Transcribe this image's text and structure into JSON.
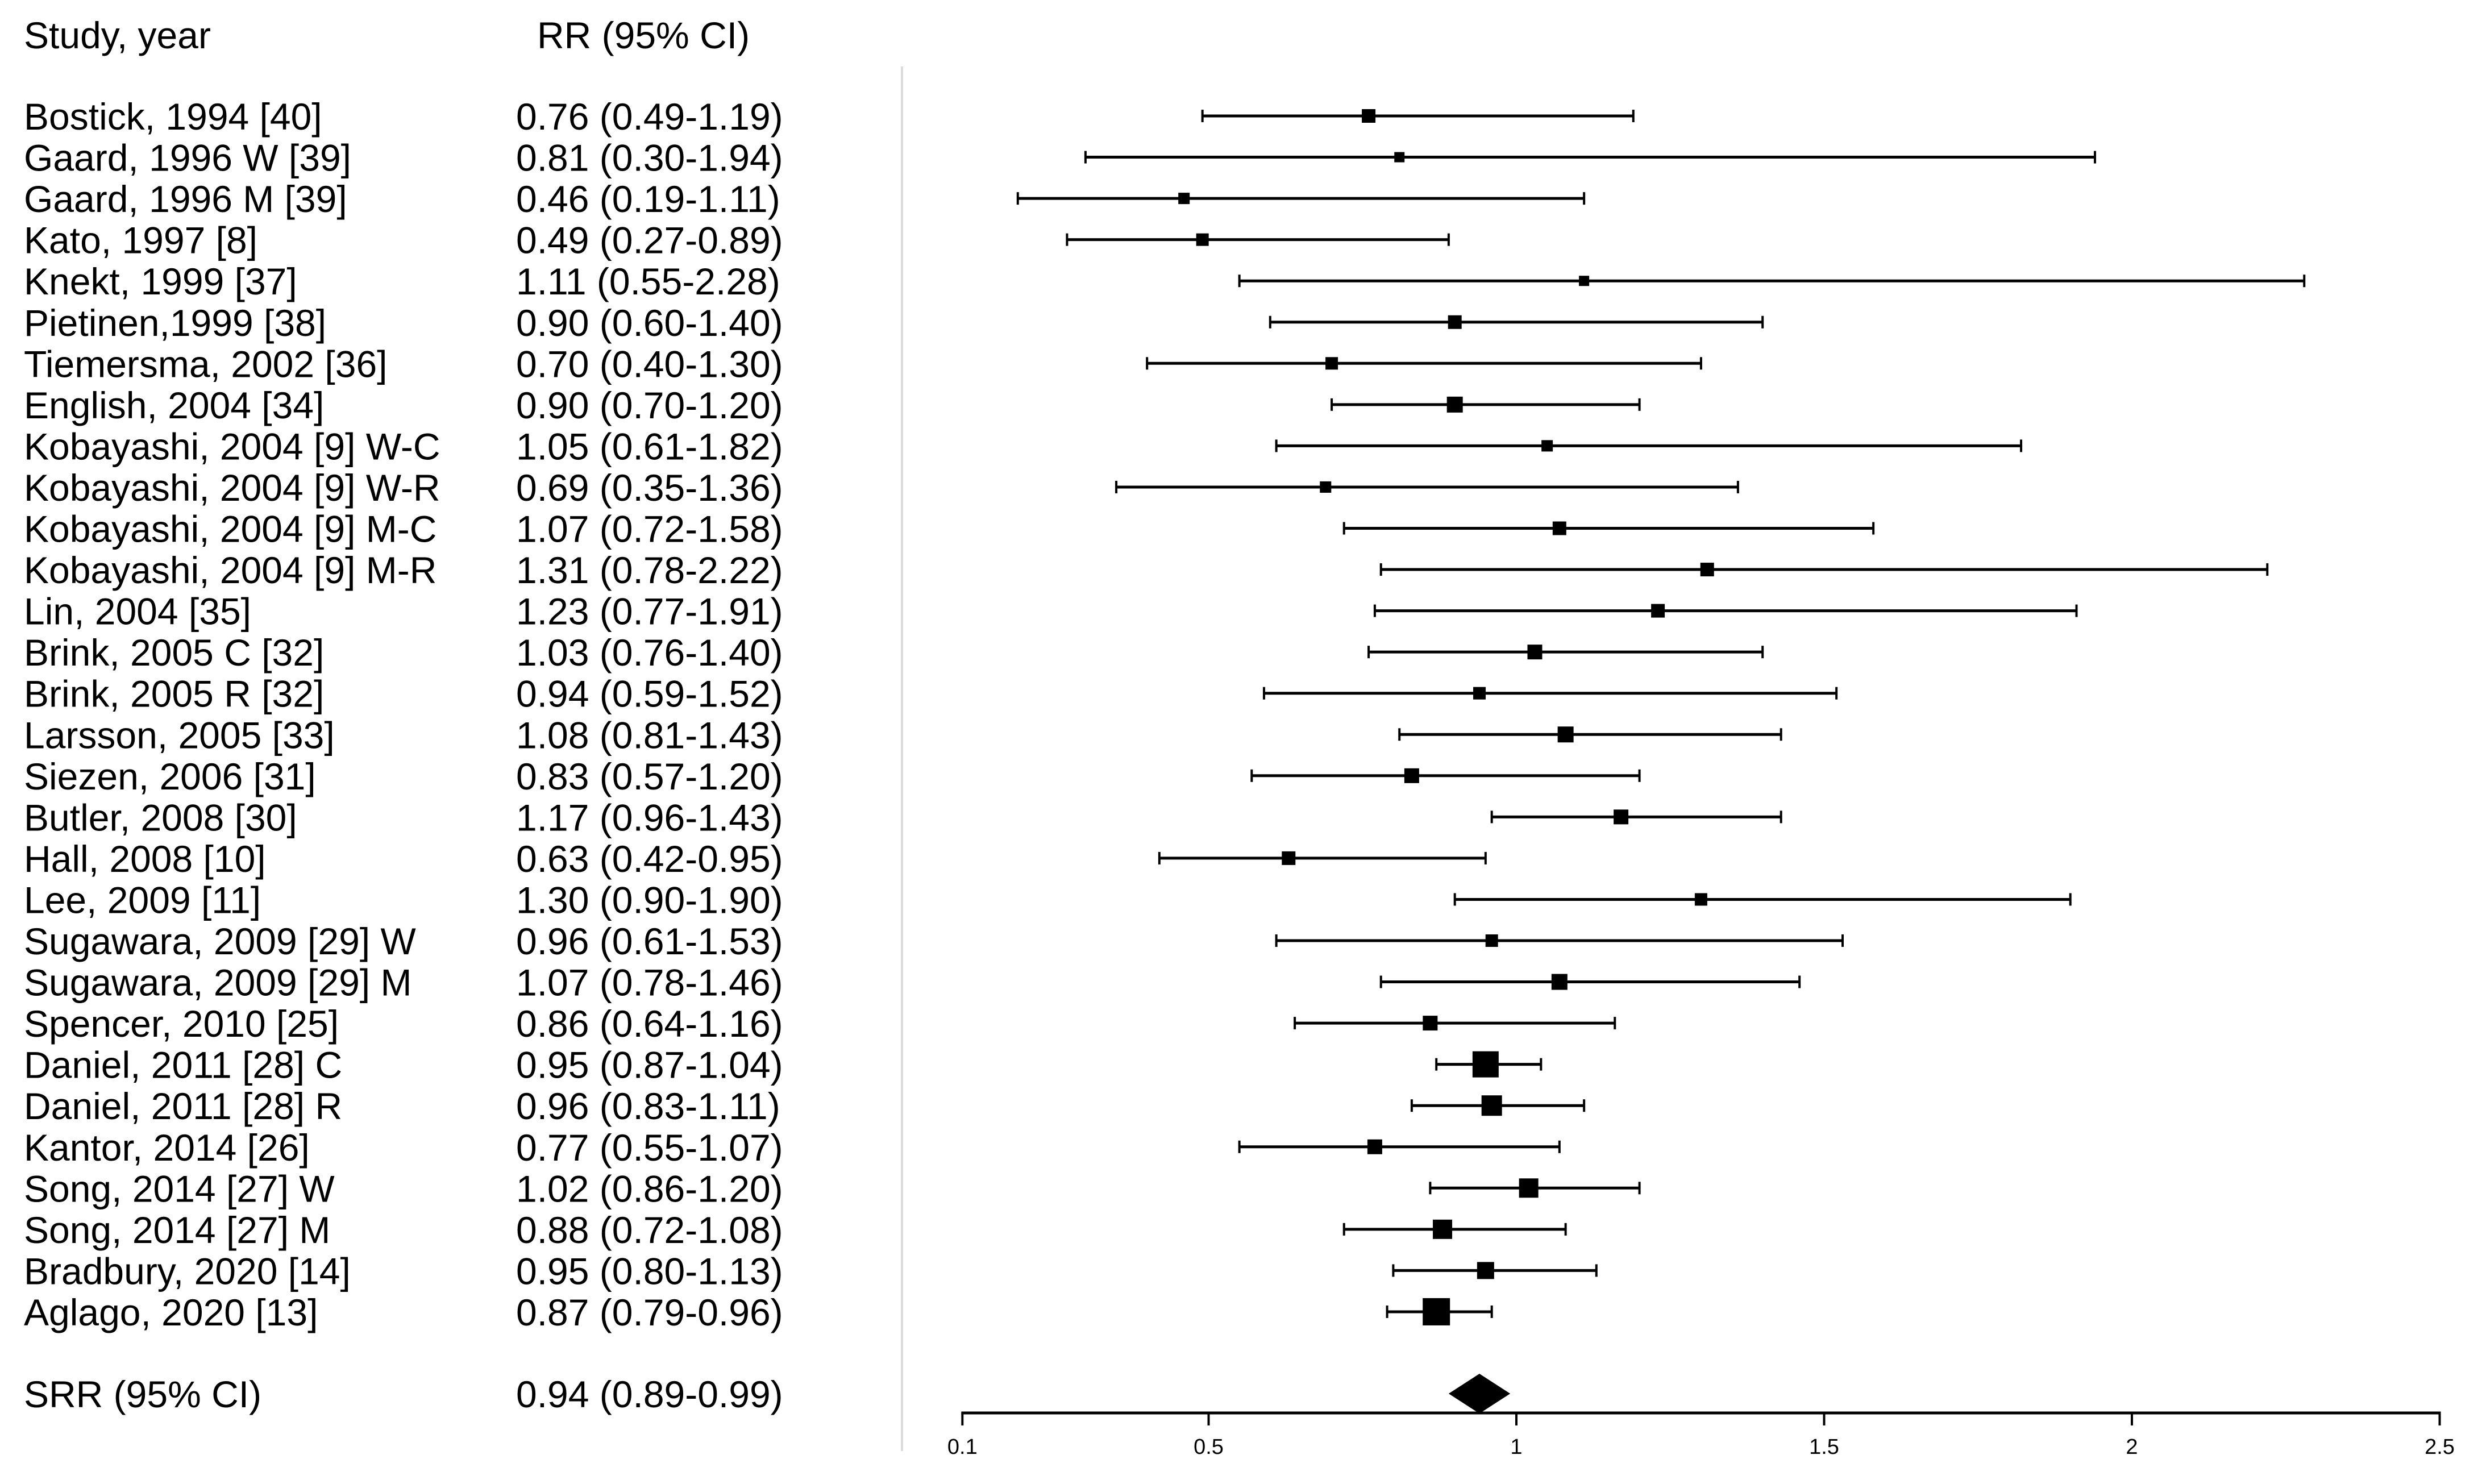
{
  "chart_data": {
    "type": "forest",
    "col_headers": {
      "study": "Study, year",
      "rr": "RR (95% CI)"
    },
    "studies": [
      {
        "label": "Bostick, 1994 [40]",
        "rr_text": "0.76 (0.49-1.19)",
        "rr": 0.76,
        "lo": 0.49,
        "hi": 1.19,
        "marker_size": 24
      },
      {
        "label": "Gaard, 1996 W [39]",
        "rr_text": "0.81 (0.30-1.94)",
        "rr": 0.81,
        "lo": 0.3,
        "hi": 1.94,
        "marker_size": 18
      },
      {
        "label": "Gaard, 1996 M [39]",
        "rr_text": "0.46 (0.19-1.11)",
        "rr": 0.46,
        "lo": 0.19,
        "hi": 1.11,
        "marker_size": 20
      },
      {
        "label": "Kato, 1997 [8]",
        "rr_text": "0.49 (0.27-0.89)",
        "rr": 0.49,
        "lo": 0.27,
        "hi": 0.89,
        "marker_size": 22
      },
      {
        "label": "Knekt, 1999 [37]",
        "rr_text": "1.11 (0.55-2.28)",
        "rr": 1.11,
        "lo": 0.55,
        "hi": 2.28,
        "marker_size": 18
      },
      {
        "label": "Pietinen,1999 [38]",
        "rr_text": "0.90 (0.60-1.40)",
        "rr": 0.9,
        "lo": 0.6,
        "hi": 1.4,
        "marker_size": 24
      },
      {
        "label": "Tiemersma, 2002 [36]",
        "rr_text": "0.70 (0.40-1.30)",
        "rr": 0.7,
        "lo": 0.4,
        "hi": 1.3,
        "marker_size": 22
      },
      {
        "label": "English, 2004 [34]",
        "rr_text": "0.90 (0.70-1.20)",
        "rr": 0.9,
        "lo": 0.7,
        "hi": 1.2,
        "marker_size": 28
      },
      {
        "label": "Kobayashi, 2004 [9] W-C",
        "rr_text": "1.05 (0.61-1.82)",
        "rr": 1.05,
        "lo": 0.61,
        "hi": 1.82,
        "marker_size": 20
      },
      {
        "label": "Kobayashi, 2004 [9] W-R",
        "rr_text": "0.69 (0.35-1.36)",
        "rr": 0.69,
        "lo": 0.35,
        "hi": 1.36,
        "marker_size": 20
      },
      {
        "label": "Kobayashi, 2004 [9] M-C",
        "rr_text": "1.07 (0.72-1.58)",
        "rr": 1.07,
        "lo": 0.72,
        "hi": 1.58,
        "marker_size": 24
      },
      {
        "label": "Kobayashi, 2004 [9] M-R",
        "rr_text": "1.31 (0.78-2.22)",
        "rr": 1.31,
        "lo": 0.78,
        "hi": 2.22,
        "marker_size": 24
      },
      {
        "label": "Lin, 2004 [35]",
        "rr_text": "1.23 (0.77-1.91)",
        "rr": 1.23,
        "lo": 0.77,
        "hi": 1.91,
        "marker_size": 24
      },
      {
        "label": "Brink, 2005 C [32]",
        "rr_text": "1.03 (0.76-1.40)",
        "rr": 1.03,
        "lo": 0.76,
        "hi": 1.4,
        "marker_size": 26
      },
      {
        "label": "Brink, 2005 R [32]",
        "rr_text": "0.94 (0.59-1.52)",
        "rr": 0.94,
        "lo": 0.59,
        "hi": 1.52,
        "marker_size": 22
      },
      {
        "label": "Larsson, 2005 [33]",
        "rr_text": "1.08 (0.81-1.43)",
        "rr": 1.08,
        "lo": 0.81,
        "hi": 1.43,
        "marker_size": 28
      },
      {
        "label": "Siezen, 2006 [31]",
        "rr_text": "0.83 (0.57-1.20)",
        "rr": 0.83,
        "lo": 0.57,
        "hi": 1.2,
        "marker_size": 26
      },
      {
        "label": "Butler, 2008 [30]",
        "rr_text": "1.17 (0.96-1.43)",
        "rr": 1.17,
        "lo": 0.96,
        "hi": 1.43,
        "marker_size": 26
      },
      {
        "label": "Hall, 2008 [10]",
        "rr_text": "0.63 (0.42-0.95)",
        "rr": 0.63,
        "lo": 0.42,
        "hi": 0.95,
        "marker_size": 24
      },
      {
        "label": "Lee, 2009 [11]",
        "rr_text": "1.30 (0.90-1.90)",
        "rr": 1.3,
        "lo": 0.9,
        "hi": 1.9,
        "marker_size": 22
      },
      {
        "label": "Sugawara, 2009 [29] W",
        "rr_text": "0.96 (0.61-1.53)",
        "rr": 0.96,
        "lo": 0.61,
        "hi": 1.53,
        "marker_size": 22
      },
      {
        "label": "Sugawara, 2009 [29] M",
        "rr_text": "1.07 (0.78-1.46)",
        "rr": 1.07,
        "lo": 0.78,
        "hi": 1.46,
        "marker_size": 28
      },
      {
        "label": "Spencer, 2010 [25]",
        "rr_text": "0.86 (0.64-1.16)",
        "rr": 0.86,
        "lo": 0.64,
        "hi": 1.16,
        "marker_size": 26
      },
      {
        "label": "Daniel, 2011 [28] C",
        "rr_text": "0.95 (0.87-1.04)",
        "rr": 0.95,
        "lo": 0.87,
        "hi": 1.04,
        "marker_size": 46
      },
      {
        "label": "Daniel, 2011 [28] R",
        "rr_text": "0.96 (0.83-1.11)",
        "rr": 0.96,
        "lo": 0.83,
        "hi": 1.11,
        "marker_size": 36
      },
      {
        "label": "Kantor, 2014 [26]",
        "rr_text": "0.77 (0.55-1.07)",
        "rr": 0.77,
        "lo": 0.55,
        "hi": 1.07,
        "marker_size": 26
      },
      {
        "label": "Song, 2014 [27] W",
        "rr_text": "1.02 (0.86-1.20)",
        "rr": 1.02,
        "lo": 0.86,
        "hi": 1.2,
        "marker_size": 34
      },
      {
        "label": "Song, 2014 [27] M",
        "rr_text": "0.88 (0.72-1.08)",
        "rr": 0.88,
        "lo": 0.72,
        "hi": 1.08,
        "marker_size": 34
      },
      {
        "label": "Bradbury, 2020 [14]",
        "rr_text": "0.95 (0.80-1.13)",
        "rr": 0.95,
        "lo": 0.8,
        "hi": 1.13,
        "marker_size": 30
      },
      {
        "label": "Aglago, 2020 [13]",
        "rr_text": "0.87 (0.79-0.96)",
        "rr": 0.87,
        "lo": 0.79,
        "hi": 0.96,
        "marker_size": 48
      }
    ],
    "summary": {
      "label": "SRR (95% CI)",
      "rr_text": "0.94 (0.89-0.99)",
      "rr": 0.94,
      "lo": 0.89,
      "hi": 0.99
    },
    "x_axis": {
      "scale": "linear",
      "min": 0.1,
      "max": 2.5,
      "ticks": [
        0.1,
        0.5,
        1,
        1.5,
        2,
        2.5
      ],
      "tick_labels": [
        "0.1",
        "0.5",
        "1",
        "1.5",
        "2",
        "2.5"
      ],
      "grid": false
    },
    "colors": {
      "text": "#000000",
      "marker": "#000000",
      "ci_line": "#000000",
      "axis": "#000000",
      "separator_line": "#dbdbdb",
      "background": "#ffffff"
    }
  }
}
